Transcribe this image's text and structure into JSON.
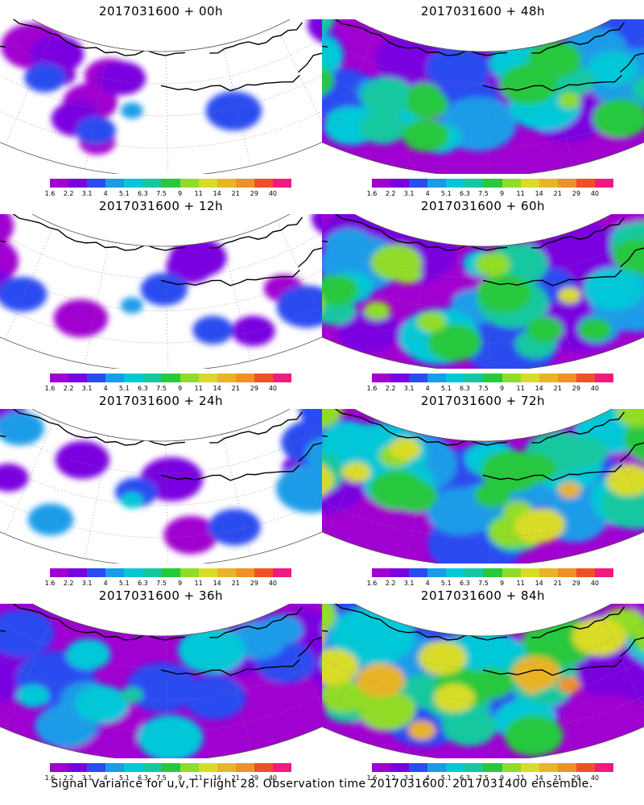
{
  "panels": [
    {
      "title": "2017031600 + 00h",
      "level": 0.08
    },
    {
      "title": "2017031600 + 48h",
      "level": 0.55
    },
    {
      "title": "2017031600 + 12h",
      "level": 0.22
    },
    {
      "title": "2017031600 + 60h",
      "level": 0.65
    },
    {
      "title": "2017031600 + 24h",
      "level": 0.32
    },
    {
      "title": "2017031600 + 72h",
      "level": 0.75
    },
    {
      "title": "2017031600 + 36h",
      "level": 0.45
    },
    {
      "title": "2017031600 + 84h",
      "level": 0.85
    }
  ],
  "colorbar": {
    "colors": [
      "#a000d0",
      "#7a00e0",
      "#2a4cf0",
      "#1a9ce8",
      "#00c8d8",
      "#14c8a0",
      "#28c83c",
      "#90dc28",
      "#d8dc28",
      "#e8b428",
      "#f09028",
      "#f05028",
      "#f01a80"
    ],
    "labels": [
      "1.6",
      "2.2",
      "3.1",
      "4",
      "5.1",
      "6.3",
      "7.5",
      "9",
      "11",
      "14",
      "21",
      "29",
      "40"
    ]
  },
  "caption": "Signal Variance for u,v,T. Flight 28. Observation time 2017031600. 2017031400 ensemble."
}
